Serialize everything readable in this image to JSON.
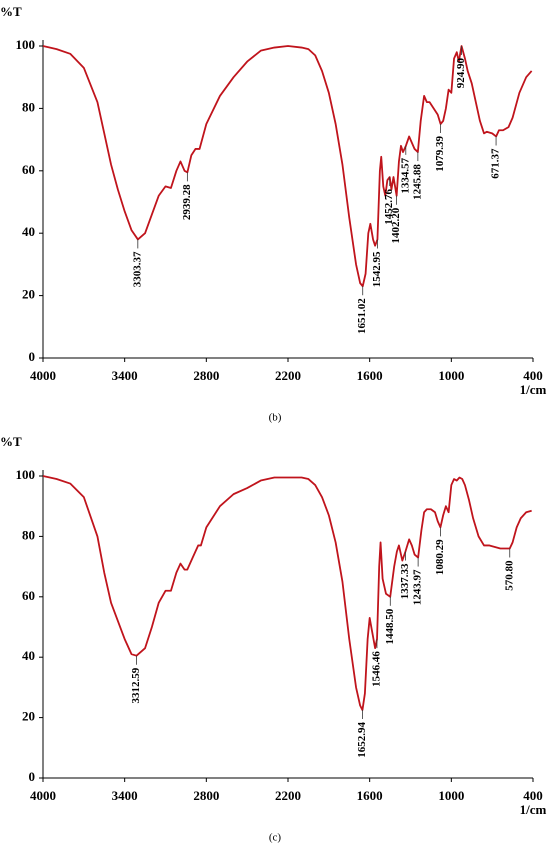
{
  "chart_data": [
    {
      "type": "line",
      "ylabel": "%T",
      "xlabel": "1/cm",
      "caption": "(b)",
      "color": "#c0141c",
      "xlim": [
        4000,
        400
      ],
      "xticks": [
        4000,
        3400,
        2800,
        2200,
        1600,
        1000,
        400
      ],
      "ylim": [
        0,
        100
      ],
      "yticks": [
        0,
        20,
        40,
        60,
        80,
        100
      ],
      "x": [
        4000,
        3900,
        3800,
        3700,
        3600,
        3550,
        3500,
        3450,
        3400,
        3350,
        3303,
        3250,
        3200,
        3150,
        3100,
        3060,
        3020,
        2990,
        2960,
        2939,
        2910,
        2880,
        2850,
        2800,
        2700,
        2600,
        2500,
        2400,
        2300,
        2200,
        2100,
        2050,
        2000,
        1950,
        1900,
        1850,
        1800,
        1750,
        1700,
        1670,
        1651,
        1630,
        1610,
        1595,
        1575,
        1560,
        1543,
        1525,
        1515,
        1500,
        1485,
        1470,
        1453,
        1440,
        1425,
        1402,
        1385,
        1370,
        1355,
        1334,
        1310,
        1290,
        1270,
        1246,
        1225,
        1200,
        1180,
        1160,
        1130,
        1100,
        1079,
        1060,
        1040,
        1020,
        1000,
        980,
        960,
        945,
        925,
        900,
        880,
        850,
        820,
        790,
        760,
        740,
        700,
        671,
        650,
        620,
        580,
        550,
        500,
        450,
        410
      ],
      "values": [
        100,
        99,
        97.5,
        93,
        82,
        72,
        62,
        54,
        47,
        41,
        38,
        40,
        46,
        52,
        55,
        54.5,
        60,
        63,
        60,
        59.5,
        65,
        67,
        67,
        75,
        84,
        90,
        95,
        98.5,
        99.5,
        100,
        99.5,
        99,
        97,
        92,
        85,
        75,
        62,
        45,
        30,
        24,
        23,
        27,
        40,
        43,
        38,
        36,
        38,
        60,
        64.5,
        55,
        52,
        57,
        58,
        54,
        58,
        52,
        63,
        68,
        66,
        68,
        71,
        69,
        67,
        66,
        76,
        84,
        82,
        82,
        80,
        78,
        75,
        76,
        80,
        86,
        85,
        96,
        98,
        95,
        100,
        96,
        92,
        88,
        82,
        76,
        72,
        72.5,
        72,
        71,
        73,
        73,
        74,
        77,
        85,
        90,
        92
      ],
      "annotations": [
        {
          "text": "3303.37",
          "x": 3303.37,
          "y": 38
        },
        {
          "text": "2939.28",
          "x": 2939.28,
          "y": 59.5
        },
        {
          "text": "1651.02",
          "x": 1651.02,
          "y": 23
        },
        {
          "text": "1542.95",
          "x": 1542.95,
          "y": 38
        },
        {
          "text": "1452.76",
          "x": 1452.76,
          "y": 58
        },
        {
          "text": "1402.20",
          "x": 1402.2,
          "y": 52
        },
        {
          "text": "1334.57",
          "x": 1334.57,
          "y": 68
        },
        {
          "text": "1245.88",
          "x": 1245.88,
          "y": 66
        },
        {
          "text": "1079.39",
          "x": 1079.39,
          "y": 75
        },
        {
          "text": "924.90",
          "x": 924.9,
          "y": 100
        },
        {
          "text": "671.37",
          "x": 671.37,
          "y": 71
        }
      ]
    },
    {
      "type": "line",
      "ylabel": "%T",
      "xlabel": "1/cm",
      "caption": "(c)",
      "color": "#c0141c",
      "xlim": [
        4000,
        400
      ],
      "xticks": [
        4000,
        3400,
        2800,
        2200,
        1600,
        1000,
        400
      ],
      "ylim": [
        0,
        100
      ],
      "yticks": [
        0,
        20,
        40,
        60,
        80,
        100
      ],
      "x": [
        4000,
        3900,
        3800,
        3700,
        3600,
        3550,
        3500,
        3450,
        3400,
        3350,
        3313,
        3250,
        3200,
        3150,
        3100,
        3060,
        3020,
        2990,
        2960,
        2940,
        2900,
        2860,
        2840,
        2800,
        2700,
        2600,
        2500,
        2400,
        2300,
        2200,
        2100,
        2050,
        2000,
        1950,
        1900,
        1850,
        1800,
        1750,
        1700,
        1670,
        1653,
        1635,
        1615,
        1600,
        1580,
        1560,
        1546,
        1530,
        1520,
        1505,
        1480,
        1449,
        1420,
        1400,
        1385,
        1360,
        1337,
        1310,
        1290,
        1270,
        1244,
        1220,
        1200,
        1180,
        1150,
        1120,
        1100,
        1080,
        1060,
        1040,
        1020,
        1000,
        980,
        960,
        940,
        920,
        900,
        870,
        840,
        800,
        760,
        720,
        680,
        640,
        600,
        571,
        550,
        520,
        490,
        450,
        410
      ],
      "values": [
        100,
        99,
        97.5,
        93,
        80,
        68,
        58,
        52,
        46,
        41,
        40.5,
        43,
        50,
        58,
        62,
        62,
        68,
        71,
        69,
        69,
        73,
        77,
        77,
        83,
        90,
        94,
        96,
        98.5,
        99.5,
        99.5,
        99.5,
        99,
        97,
        93,
        87,
        78,
        65,
        46,
        30,
        24,
        22.5,
        28,
        46,
        53,
        48,
        43,
        46,
        70,
        78,
        66,
        61,
        60,
        70,
        75,
        77,
        72,
        75,
        79,
        77,
        74,
        73,
        82,
        88,
        89,
        89,
        88,
        85,
        83,
        87,
        90,
        88,
        97,
        99,
        98.5,
        99.5,
        99,
        97,
        92,
        86,
        80,
        77,
        77,
        76.5,
        76,
        76,
        76,
        78,
        83,
        86,
        88,
        88.5
      ],
      "annotations": [
        {
          "text": "3312.59",
          "x": 3312.59,
          "y": 40.5
        },
        {
          "text": "1652.94",
          "x": 1652.94,
          "y": 22.5
        },
        {
          "text": "1546.46",
          "x": 1546.46,
          "y": 46
        },
        {
          "text": "1448.50",
          "x": 1448.5,
          "y": 60
        },
        {
          "text": "1337.33",
          "x": 1337.33,
          "y": 75
        },
        {
          "text": "1243.97",
          "x": 1243.97,
          "y": 73
        },
        {
          "text": "1080.29",
          "x": 1080.29,
          "y": 83
        },
        {
          "text": "570.80",
          "x": 570.8,
          "y": 76
        }
      ]
    }
  ]
}
